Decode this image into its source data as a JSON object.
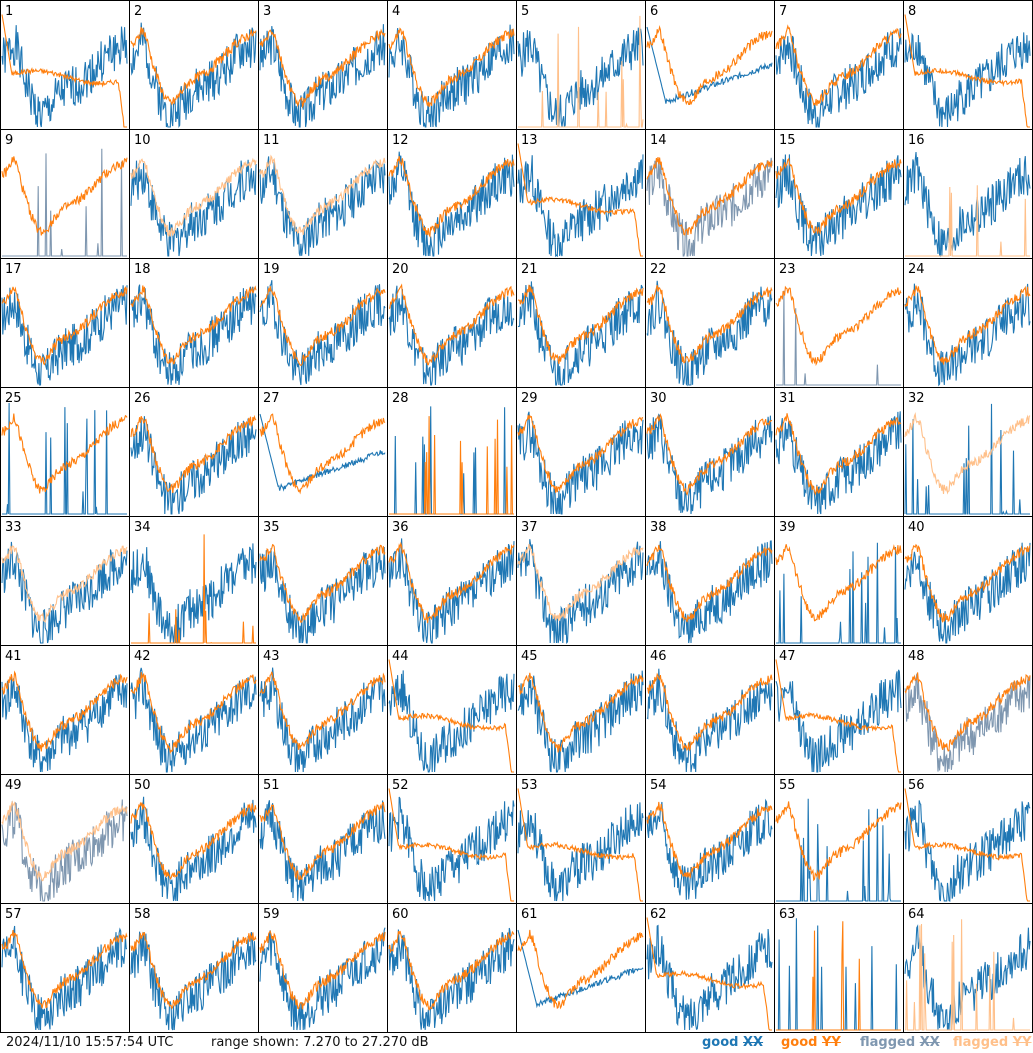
{
  "footer": {
    "timestamp": "2024/11/10 15:57:54 UTC",
    "range_text": "range shown: 7.270 to 27.270 dB"
  },
  "legend": {
    "items": [
      {
        "label": "good",
        "symbol": "XX",
        "color": "#1f77b4"
      },
      {
        "label": "good",
        "symbol": "YY",
        "color": "#ff7f0e"
      },
      {
        "label": "flagged",
        "symbol": "XX",
        "color": "#7f97b0"
      },
      {
        "label": "flagged",
        "symbol": "YY",
        "color": "#ffc08a"
      }
    ]
  },
  "chart_data": {
    "type": "line",
    "grid_cols": 8,
    "grid_rows": 8,
    "ylim_db": [
      7.27,
      27.27
    ],
    "panels": [
      {
        "id": "1",
        "xx": "good",
        "yy": "good",
        "profile": "bad-yy",
        "seed": 1
      },
      {
        "id": "2",
        "xx": "good",
        "yy": "good",
        "profile": "normal",
        "seed": 2
      },
      {
        "id": "3",
        "xx": "good",
        "yy": "good",
        "profile": "normal",
        "seed": 3
      },
      {
        "id": "4",
        "xx": "good",
        "yy": "good",
        "profile": "normal",
        "seed": 4
      },
      {
        "id": "5",
        "xx": "good",
        "yy": "flagged",
        "profile": "spiky-yy",
        "seed": 5
      },
      {
        "id": "6",
        "xx": "good",
        "yy": "good",
        "profile": "bad-xx",
        "seed": 6
      },
      {
        "id": "7",
        "xx": "good",
        "yy": "good",
        "profile": "normal",
        "seed": 7
      },
      {
        "id": "8",
        "xx": "good",
        "yy": "good",
        "profile": "bad-yy",
        "seed": 8
      },
      {
        "id": "9",
        "xx": "flagged",
        "yy": "good",
        "profile": "spiky-xx",
        "seed": 9
      },
      {
        "id": "10",
        "xx": "good",
        "yy": "flagged",
        "profile": "normal",
        "seed": 10
      },
      {
        "id": "11",
        "xx": "good",
        "yy": "flagged",
        "profile": "normal",
        "seed": 11
      },
      {
        "id": "12",
        "xx": "good",
        "yy": "good",
        "profile": "normal",
        "seed": 12
      },
      {
        "id": "13",
        "xx": "good",
        "yy": "good",
        "profile": "bad-yy",
        "seed": 13
      },
      {
        "id": "14",
        "xx": "flagged",
        "yy": "good",
        "profile": "normal",
        "seed": 14
      },
      {
        "id": "15",
        "xx": "good",
        "yy": "good",
        "profile": "normal",
        "seed": 15
      },
      {
        "id": "16",
        "xx": "good",
        "yy": "flagged",
        "profile": "spiky-yy",
        "seed": 16
      },
      {
        "id": "17",
        "xx": "good",
        "yy": "good",
        "profile": "normal",
        "seed": 17
      },
      {
        "id": "18",
        "xx": "good",
        "yy": "good",
        "profile": "normal",
        "seed": 18
      },
      {
        "id": "19",
        "xx": "good",
        "yy": "good",
        "profile": "normal",
        "seed": 19
      },
      {
        "id": "20",
        "xx": "good",
        "yy": "good",
        "profile": "normal",
        "seed": 20
      },
      {
        "id": "21",
        "xx": "good",
        "yy": "good",
        "profile": "normal",
        "seed": 21
      },
      {
        "id": "22",
        "xx": "good",
        "yy": "good",
        "profile": "normal",
        "seed": 22
      },
      {
        "id": "23",
        "xx": "flagged",
        "yy": "good",
        "profile": "spiky-xx",
        "seed": 23
      },
      {
        "id": "24",
        "xx": "good",
        "yy": "good",
        "profile": "normal",
        "seed": 24
      },
      {
        "id": "25",
        "xx": "good",
        "yy": "good",
        "profile": "spiky-xx",
        "seed": 25
      },
      {
        "id": "26",
        "xx": "good",
        "yy": "good",
        "profile": "normal",
        "seed": 26
      },
      {
        "id": "27",
        "xx": "good",
        "yy": "good",
        "profile": "bad-xx",
        "seed": 27
      },
      {
        "id": "28",
        "xx": "good",
        "yy": "good",
        "profile": "dead",
        "seed": 28
      },
      {
        "id": "29",
        "xx": "good",
        "yy": "good",
        "profile": "normal",
        "seed": 29
      },
      {
        "id": "30",
        "xx": "good",
        "yy": "good",
        "profile": "normal",
        "seed": 30
      },
      {
        "id": "31",
        "xx": "good",
        "yy": "good",
        "profile": "normal",
        "seed": 31
      },
      {
        "id": "32",
        "xx": "good",
        "yy": "flagged",
        "profile": "spiky-xx",
        "seed": 32
      },
      {
        "id": "33",
        "xx": "good",
        "yy": "flagged",
        "profile": "normal",
        "seed": 33
      },
      {
        "id": "34",
        "xx": "good",
        "yy": "good",
        "profile": "spiky-yy",
        "seed": 34
      },
      {
        "id": "35",
        "xx": "good",
        "yy": "good",
        "profile": "normal",
        "seed": 35
      },
      {
        "id": "36",
        "xx": "good",
        "yy": "good",
        "profile": "normal",
        "seed": 36
      },
      {
        "id": "37",
        "xx": "good",
        "yy": "flagged",
        "profile": "normal",
        "seed": 37
      },
      {
        "id": "38",
        "xx": "good",
        "yy": "good",
        "profile": "normal",
        "seed": 38
      },
      {
        "id": "39",
        "xx": "good",
        "yy": "good",
        "profile": "spiky-xx",
        "seed": 39
      },
      {
        "id": "40",
        "xx": "good",
        "yy": "good",
        "profile": "normal",
        "seed": 40
      },
      {
        "id": "41",
        "xx": "good",
        "yy": "good",
        "profile": "normal",
        "seed": 41
      },
      {
        "id": "42",
        "xx": "good",
        "yy": "good",
        "profile": "normal",
        "seed": 42
      },
      {
        "id": "43",
        "xx": "good",
        "yy": "good",
        "profile": "normal",
        "seed": 43
      },
      {
        "id": "44",
        "xx": "good",
        "yy": "good",
        "profile": "bad-yy",
        "seed": 44
      },
      {
        "id": "45",
        "xx": "good",
        "yy": "good",
        "profile": "normal",
        "seed": 45
      },
      {
        "id": "46",
        "xx": "good",
        "yy": "good",
        "profile": "normal",
        "seed": 46
      },
      {
        "id": "47",
        "xx": "good",
        "yy": "good",
        "profile": "bad-yy",
        "seed": 47
      },
      {
        "id": "48",
        "xx": "flagged",
        "yy": "good",
        "profile": "normal",
        "seed": 48
      },
      {
        "id": "49",
        "xx": "flagged",
        "yy": "flagged",
        "profile": "normal",
        "seed": 49
      },
      {
        "id": "50",
        "xx": "good",
        "yy": "good",
        "profile": "normal",
        "seed": 50
      },
      {
        "id": "51",
        "xx": "good",
        "yy": "good",
        "profile": "normal",
        "seed": 51
      },
      {
        "id": "52",
        "xx": "good",
        "yy": "good",
        "profile": "bad-yy",
        "seed": 52
      },
      {
        "id": "53",
        "xx": "good",
        "yy": "good",
        "profile": "bad-yy",
        "seed": 53
      },
      {
        "id": "54",
        "xx": "good",
        "yy": "good",
        "profile": "normal",
        "seed": 54
      },
      {
        "id": "55",
        "xx": "good",
        "yy": "good",
        "profile": "spiky-xx",
        "seed": 55
      },
      {
        "id": "56",
        "xx": "good",
        "yy": "good",
        "profile": "bad-yy",
        "seed": 56
      },
      {
        "id": "57",
        "xx": "good",
        "yy": "good",
        "profile": "normal",
        "seed": 57
      },
      {
        "id": "58",
        "xx": "good",
        "yy": "good",
        "profile": "normal",
        "seed": 58
      },
      {
        "id": "59",
        "xx": "good",
        "yy": "good",
        "profile": "normal",
        "seed": 59
      },
      {
        "id": "60",
        "xx": "good",
        "yy": "good",
        "profile": "normal",
        "seed": 60
      },
      {
        "id": "61",
        "xx": "good",
        "yy": "good",
        "profile": "bad-xx",
        "seed": 61
      },
      {
        "id": "62",
        "xx": "good",
        "yy": "good",
        "profile": "bad-yy",
        "seed": 62
      },
      {
        "id": "63",
        "xx": "good",
        "yy": "good",
        "profile": "dead",
        "seed": 63
      },
      {
        "id": "64",
        "xx": "good",
        "yy": "flagged",
        "profile": "spiky-yy",
        "seed": 64
      }
    ]
  }
}
